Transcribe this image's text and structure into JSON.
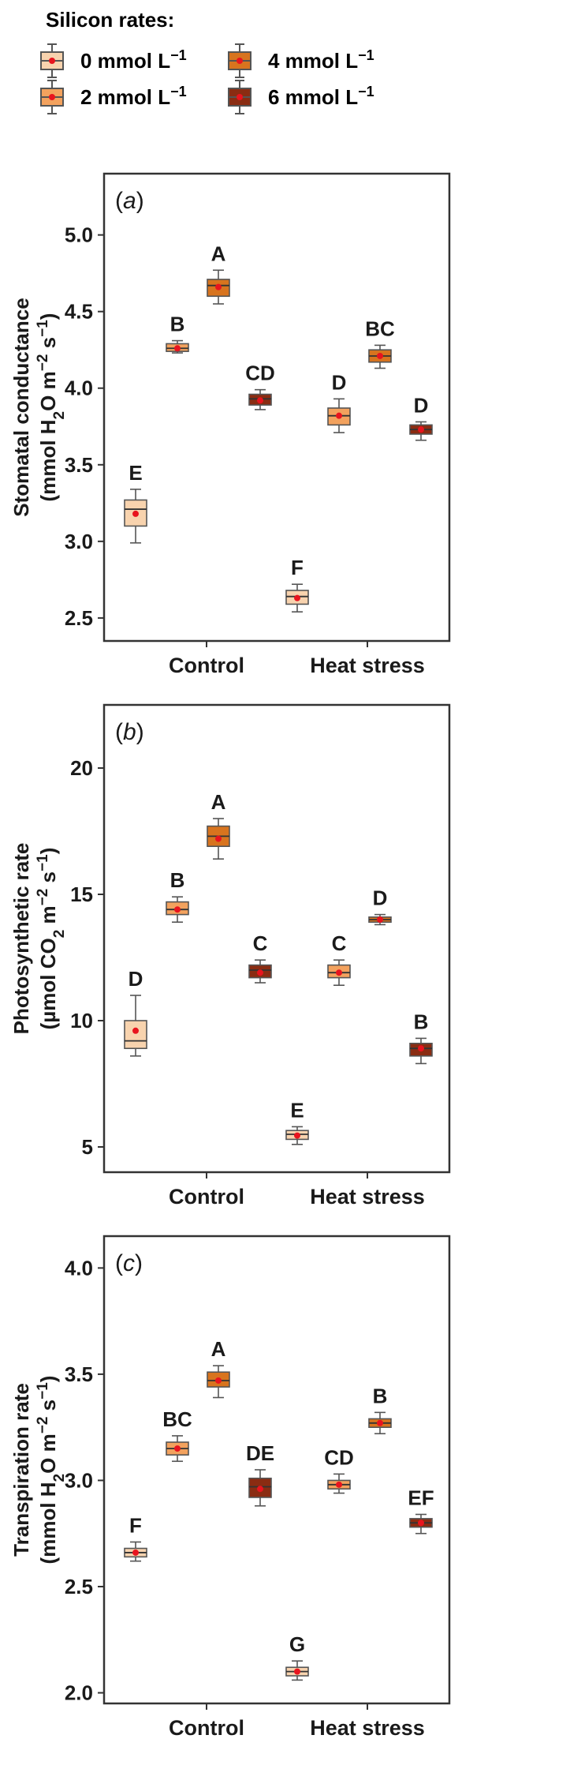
{
  "legend": {
    "title": "Silicon rates:",
    "items": [
      {
        "label": "0 mmol L",
        "sup": "−1",
        "color": "#f8d3ae"
      },
      {
        "label": "2 mmol L",
        "sup": "−1",
        "color": "#f3a25e"
      },
      {
        "label": "4 mmol L",
        "sup": "−1",
        "color": "#d8741e"
      },
      {
        "label": "6 mmol L",
        "sup": "−1",
        "color": "#8a2c12"
      }
    ]
  },
  "chart_data": [
    {
      "type": "box",
      "panel": "(a)",
      "ylabel_line1": "Stomatal conductance",
      "ylabel_line2": "(mmol H2O m−2 s−1)",
      "ylim": [
        2.35,
        5.4
      ],
      "yticks": [
        2.5,
        3.0,
        3.5,
        4.0,
        4.5,
        5.0
      ],
      "ytick_labels": [
        "2.5",
        "3.0",
        "3.5",
        "4.0",
        "4.5",
        "5.0"
      ],
      "categories": [
        "Control",
        "Heat stress"
      ],
      "series_labels": [
        "0 mmol L−1",
        "2 mmol L−1",
        "4 mmol L−1",
        "6 mmol L−1"
      ],
      "boxes": [
        {
          "category": "Control",
          "series": 0,
          "min": 2.99,
          "q1": 3.1,
          "median": 3.21,
          "q3": 3.27,
          "max": 3.34,
          "mean": 3.18,
          "label": "E"
        },
        {
          "category": "Control",
          "series": 1,
          "min": 4.23,
          "q1": 4.24,
          "median": 4.26,
          "q3": 4.29,
          "max": 4.31,
          "mean": 4.26,
          "label": "B"
        },
        {
          "category": "Control",
          "series": 2,
          "min": 4.55,
          "q1": 4.6,
          "median": 4.67,
          "q3": 4.71,
          "max": 4.77,
          "mean": 4.66,
          "label": "A"
        },
        {
          "category": "Control",
          "series": 3,
          "min": 3.86,
          "q1": 3.89,
          "median": 3.93,
          "q3": 3.96,
          "max": 3.99,
          "mean": 3.92,
          "label": "CD"
        },
        {
          "category": "Heat stress",
          "series": 0,
          "min": 2.54,
          "q1": 2.59,
          "median": 2.64,
          "q3": 2.68,
          "max": 2.72,
          "mean": 2.63,
          "label": "F"
        },
        {
          "category": "Heat stress",
          "series": 1,
          "min": 3.71,
          "q1": 3.76,
          "median": 3.82,
          "q3": 3.87,
          "max": 3.93,
          "mean": 3.82,
          "label": "D"
        },
        {
          "category": "Heat stress",
          "series": 2,
          "min": 4.13,
          "q1": 4.17,
          "median": 4.21,
          "q3": 4.25,
          "max": 4.28,
          "mean": 4.21,
          "label": "BC"
        },
        {
          "category": "Heat stress",
          "series": 3,
          "min": 3.66,
          "q1": 3.7,
          "median": 3.73,
          "q3": 3.76,
          "max": 3.78,
          "mean": 3.73,
          "label": "D"
        }
      ]
    },
    {
      "type": "box",
      "panel": "(b)",
      "ylabel_line1": "Photosynthetic rate",
      "ylabel_line2": "(µmol CO2 m−2 s−1)",
      "ylim": [
        4.0,
        22.5
      ],
      "yticks": [
        5,
        10,
        15,
        20
      ],
      "ytick_labels": [
        "5",
        "10",
        "15",
        "20"
      ],
      "categories": [
        "Control",
        "Heat stress"
      ],
      "series_labels": [
        "0 mmol L−1",
        "2 mmol L−1",
        "4 mmol L−1",
        "6 mmol L−1"
      ],
      "boxes": [
        {
          "category": "Control",
          "series": 0,
          "min": 8.6,
          "q1": 8.9,
          "median": 9.2,
          "q3": 10.0,
          "max": 11.0,
          "mean": 9.6,
          "label": "D"
        },
        {
          "category": "Control",
          "series": 1,
          "min": 13.9,
          "q1": 14.2,
          "median": 14.4,
          "q3": 14.7,
          "max": 14.9,
          "mean": 14.4,
          "label": "B"
        },
        {
          "category": "Control",
          "series": 2,
          "min": 16.4,
          "q1": 16.9,
          "median": 17.3,
          "q3": 17.7,
          "max": 18.0,
          "mean": 17.2,
          "label": "A"
        },
        {
          "category": "Control",
          "series": 3,
          "min": 11.5,
          "q1": 11.7,
          "median": 12.0,
          "q3": 12.2,
          "max": 12.4,
          "mean": 11.9,
          "label": "C"
        },
        {
          "category": "Heat stress",
          "series": 0,
          "min": 5.1,
          "q1": 5.3,
          "median": 5.5,
          "q3": 5.65,
          "max": 5.8,
          "mean": 5.45,
          "label": "E"
        },
        {
          "category": "Heat stress",
          "series": 1,
          "min": 11.4,
          "q1": 11.7,
          "median": 11.9,
          "q3": 12.2,
          "max": 12.4,
          "mean": 11.9,
          "label": "C"
        },
        {
          "category": "Heat stress",
          "series": 2,
          "min": 13.8,
          "q1": 13.9,
          "median": 14.0,
          "q3": 14.1,
          "max": 14.2,
          "mean": 14.0,
          "label": "D"
        },
        {
          "category": "Heat stress",
          "series": 3,
          "min": 8.3,
          "q1": 8.6,
          "median": 8.9,
          "q3": 9.1,
          "max": 9.3,
          "mean": 8.9,
          "label": "B"
        }
      ]
    },
    {
      "type": "box",
      "panel": "(c)",
      "ylabel_line1": "Transpiration rate",
      "ylabel_line2": "(mmol H2O m−2 s−1)",
      "ylim": [
        1.95,
        4.15
      ],
      "yticks": [
        2.0,
        2.5,
        3.0,
        3.5,
        4.0
      ],
      "ytick_labels": [
        "2.0",
        "2.5",
        "3.0",
        "3.5",
        "4.0"
      ],
      "categories": [
        "Control",
        "Heat stress"
      ],
      "series_labels": [
        "0 mmol L−1",
        "2 mmol L−1",
        "4 mmol L−1",
        "6 mmol L−1"
      ],
      "boxes": [
        {
          "category": "Control",
          "series": 0,
          "min": 2.62,
          "q1": 2.64,
          "median": 2.66,
          "q3": 2.68,
          "max": 2.71,
          "mean": 2.66,
          "label": "F"
        },
        {
          "category": "Control",
          "series": 1,
          "min": 3.09,
          "q1": 3.12,
          "median": 3.15,
          "q3": 3.18,
          "max": 3.21,
          "mean": 3.15,
          "label": "BC"
        },
        {
          "category": "Control",
          "series": 2,
          "min": 3.39,
          "q1": 3.44,
          "median": 3.47,
          "q3": 3.51,
          "max": 3.54,
          "mean": 3.47,
          "label": "A"
        },
        {
          "category": "Control",
          "series": 3,
          "min": 2.88,
          "q1": 2.92,
          "median": 2.97,
          "q3": 3.01,
          "max": 3.05,
          "mean": 2.96,
          "label": "DE"
        },
        {
          "category": "Heat stress",
          "series": 0,
          "min": 2.06,
          "q1": 2.08,
          "median": 2.1,
          "q3": 2.12,
          "max": 2.15,
          "mean": 2.1,
          "label": "G"
        },
        {
          "category": "Heat stress",
          "series": 1,
          "min": 2.94,
          "q1": 2.96,
          "median": 2.98,
          "q3": 3.0,
          "max": 3.03,
          "mean": 2.98,
          "label": "CD"
        },
        {
          "category": "Heat stress",
          "series": 2,
          "min": 3.22,
          "q1": 3.25,
          "median": 3.27,
          "q3": 3.29,
          "max": 3.32,
          "mean": 3.27,
          "label": "B"
        },
        {
          "category": "Heat stress",
          "series": 3,
          "min": 2.75,
          "q1": 2.78,
          "median": 2.8,
          "q3": 2.82,
          "max": 2.84,
          "mean": 2.8,
          "label": "EF"
        }
      ]
    }
  ],
  "colors": {
    "box_fills": [
      "#f8d3ae",
      "#f3a25e",
      "#d8741e",
      "#8a2c12"
    ],
    "box_stroke": "#555555",
    "mean_dot": "#e8141e",
    "frame": "#333333"
  }
}
